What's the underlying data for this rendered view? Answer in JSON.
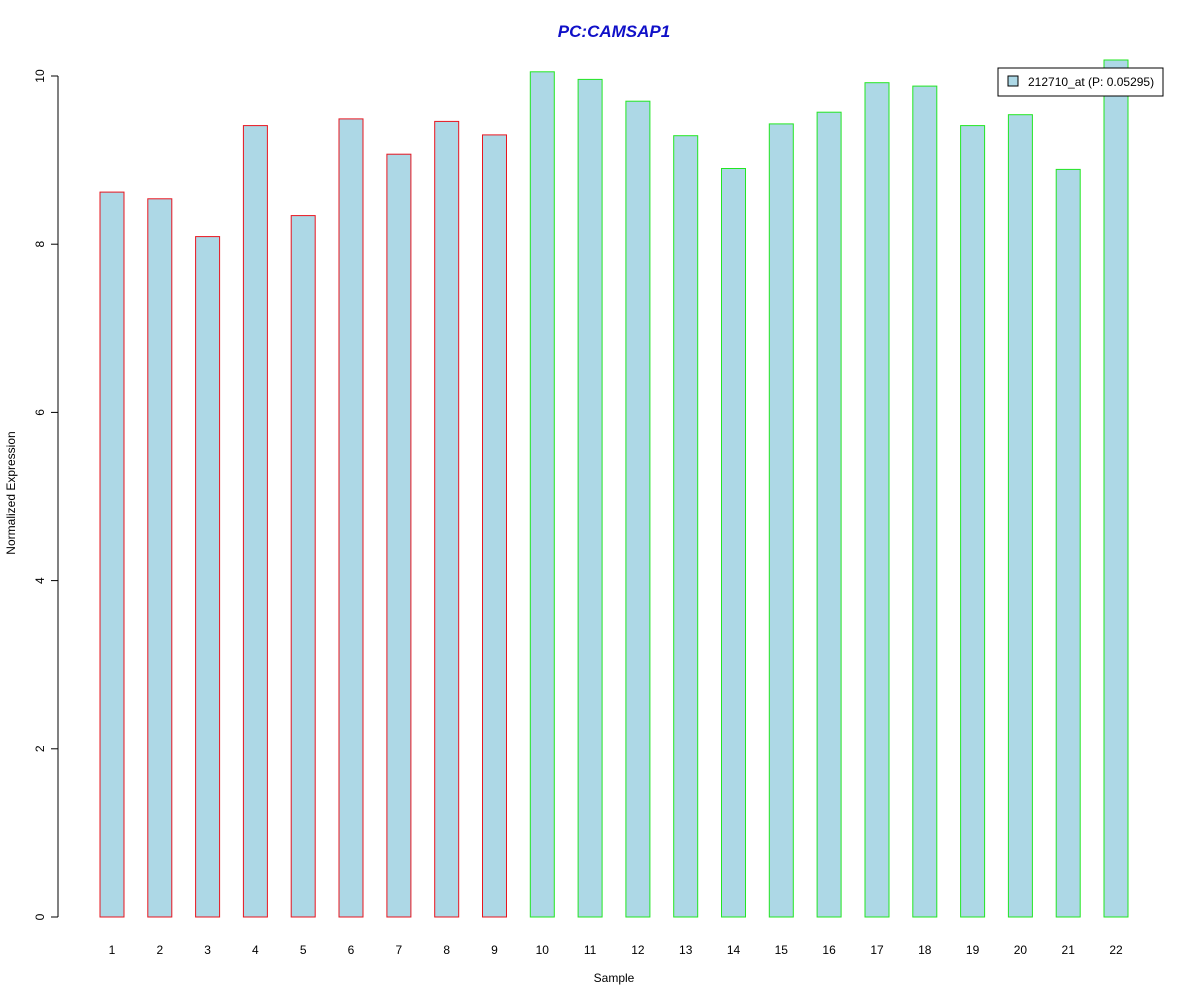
{
  "chart_data": {
    "type": "bar",
    "title": "PC:CAMSAP1",
    "xlabel": "Sample",
    "ylabel": "Normalized Expression",
    "categories": [
      "1",
      "2",
      "3",
      "4",
      "5",
      "6",
      "7",
      "8",
      "9",
      "10",
      "11",
      "12",
      "13",
      "14",
      "15",
      "16",
      "17",
      "18",
      "19",
      "20",
      "21",
      "22"
    ],
    "series": [
      {
        "name": "212710_at (P: 0.05295)",
        "values": [
          8.62,
          8.54,
          8.09,
          9.41,
          8.34,
          9.49,
          9.07,
          9.46,
          9.3,
          10.05,
          9.96,
          9.7,
          9.29,
          8.9,
          9.43,
          9.57,
          9.92,
          9.88,
          9.41,
          9.54,
          8.89,
          10.19
        ],
        "groups": [
          "a",
          "a",
          "a",
          "a",
          "a",
          "a",
          "a",
          "a",
          "a",
          "b",
          "b",
          "b",
          "b",
          "b",
          "b",
          "b",
          "b",
          "b",
          "b",
          "b",
          "b",
          "b"
        ]
      }
    ],
    "yticks": [
      0,
      2,
      4,
      6,
      8,
      10
    ],
    "ylim": [
      0,
      10.19
    ],
    "grid": false,
    "legend_position": "top-right",
    "colors": {
      "title": "#1010c8",
      "bar_fill": "#add8e6",
      "group_a_border": "#e8141e",
      "group_b_border": "#22e622",
      "axis": "#000000"
    }
  }
}
